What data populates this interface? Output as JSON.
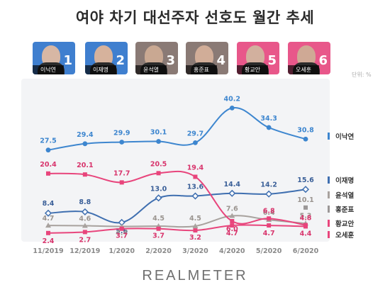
{
  "header": {
    "title": "여야 차기 대선주자 선호도 월간 추세"
  },
  "candidates": [
    {
      "name": "이낙연",
      "rank": "1",
      "color": "#3f7fcf"
    },
    {
      "name": "이재명",
      "rank": "2",
      "color": "#3f7fcf"
    },
    {
      "name": "윤석열",
      "rank": "3",
      "color": "#8a7a75"
    },
    {
      "name": "홍준표",
      "rank": "4",
      "color": "#8a7a75"
    },
    {
      "name": "황교안",
      "rank": "5",
      "color": "#e8578a"
    },
    {
      "name": "오세훈",
      "rank": "6",
      "color": "#e8578a"
    }
  ],
  "unit_label": "단위: %",
  "logo": "REALMETER",
  "chart_data": {
    "type": "line",
    "x": [
      "11/2019",
      "12/2019",
      "1/2020",
      "2/2020",
      "3/2020",
      "4/2020",
      "5/2020",
      "6/2020"
    ],
    "ylim": [
      0,
      45
    ],
    "grid": false,
    "legend_placement": "right",
    "series": [
      {
        "name": "이낙연",
        "color": "#3d86cf",
        "marker": "circle",
        "label_color": "#3d86cf",
        "values": [
          27.5,
          29.4,
          29.9,
          30.1,
          29.7,
          40.2,
          34.3,
          30.8
        ],
        "labels": [
          "27.5",
          "29.4",
          "29.9",
          "30.1",
          "29.7",
          "40.2",
          "34.3",
          "30.8"
        ]
      },
      {
        "name": "이재명",
        "color": "#3f6fb0",
        "marker": "diamond",
        "label_color": "#3a5f98",
        "values": [
          8.4,
          8.8,
          5.6,
          13.0,
          13.6,
          14.4,
          14.2,
          15.6
        ],
        "labels": [
          "8.4",
          "8.8",
          "5.6",
          "13.0",
          "13.6",
          "14.4",
          "14.2",
          "15.6"
        ]
      },
      {
        "name": "윤석열",
        "color": "#a8a29e",
        "marker": "triangle",
        "label_color": "#9a948f",
        "values": [
          4.7,
          4.6,
          4.4,
          4.5,
          4.5,
          7.6,
          6.4,
          5.3
        ],
        "labels": [
          "4.7",
          "4.6",
          "4.4",
          "4.5",
          "4.5",
          "7.6",
          "6.4",
          "5.3"
        ]
      },
      {
        "name": "홍준표",
        "color": "#9b9797",
        "marker": "square",
        "label_color": "#9a948f",
        "values": [
          null,
          null,
          null,
          null,
          null,
          null,
          null,
          10.1
        ],
        "labels": [
          "",
          "",
          "",
          "",
          "",
          "",
          "",
          "10.1"
        ]
      },
      {
        "name": "황교안",
        "color": "#e8457c",
        "marker": "square",
        "label_color": "#d8346c",
        "values": [
          20.4,
          20.1,
          17.7,
          20.5,
          19.4,
          6.0,
          6.8,
          4.8
        ],
        "labels": [
          "20.4",
          "20.1",
          "17.7",
          "20.5",
          "19.4",
          "6.0",
          "6.8",
          "4.8"
        ]
      },
      {
        "name": "오세훈",
        "color": "#e8457c",
        "marker": "square",
        "label_color": "#d8346c",
        "values": [
          2.4,
          2.7,
          3.7,
          3.7,
          3.2,
          4.7,
          4.7,
          4.4
        ],
        "labels": [
          "2.4",
          "2.7",
          "3.7",
          "3.7",
          "3.2",
          "4.7",
          "4.7",
          "4.4"
        ]
      }
    ],
    "legend": [
      {
        "label": "이낙연",
        "color": "#3d86cf"
      },
      {
        "label": "이재명",
        "color": "#3f6fb0"
      },
      {
        "label": "윤석열",
        "color": "#a8a29e"
      },
      {
        "label": "홍준표",
        "color": "#9b9797"
      },
      {
        "label": "황교안",
        "color": "#e8457c"
      },
      {
        "label": "오세훈",
        "color": "#e8457c"
      }
    ]
  }
}
